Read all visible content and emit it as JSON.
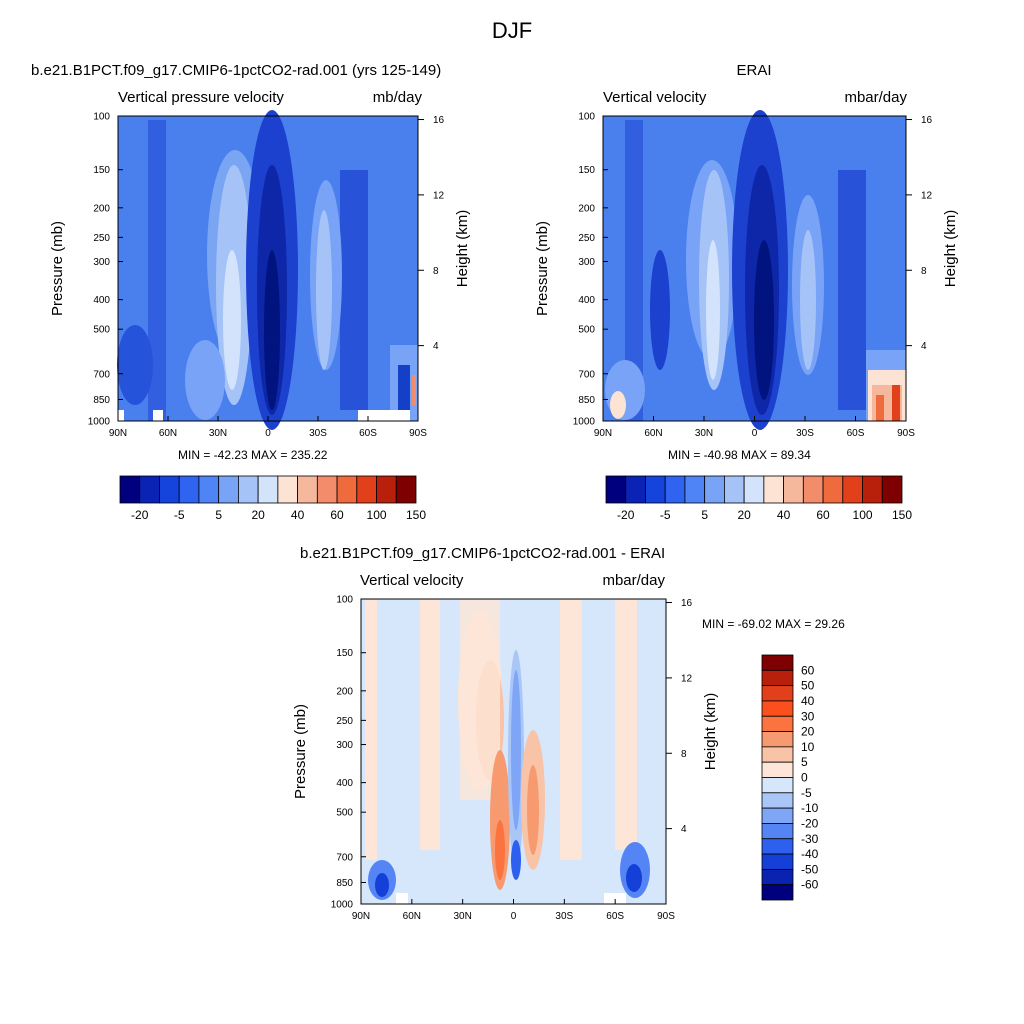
{
  "figure_title": "DJF",
  "chart_data": [
    {
      "type": "heatmap",
      "title": "b.e21.B1PCT.f09_g17.CMIP6-1pctCO2-rad.001 (yrs 125-149)",
      "subtitle_left": "Vertical pressure velocity",
      "subtitle_right": "mb/day",
      "ylabel_left": "Pressure (mb)",
      "ylabel_right": "Height (km)",
      "x_ticks": [
        "90N",
        "60N",
        "30N",
        "0",
        "30S",
        "60S",
        "90S"
      ],
      "x_range": [
        90,
        -90
      ],
      "y_ticks_pressure": [
        100,
        150,
        200,
        250,
        300,
        400,
        500,
        700,
        850,
        1000
      ],
      "y_range_pressure": [
        1000,
        100
      ],
      "y_ticks_height_km": [
        4,
        8,
        12,
        16
      ],
      "stats": "MIN = -42.23  MAX = 235.22",
      "min": -42.23,
      "max": 235.22,
      "colorbar_labels": [
        "-20",
        "-5",
        "5",
        "20",
        "40",
        "60",
        "100",
        "150"
      ],
      "colorbar_orientation": "horizontal"
    },
    {
      "type": "heatmap",
      "title": "ERAI",
      "subtitle_left": "Vertical velocity",
      "subtitle_right": "mbar/day",
      "ylabel_left": "Pressure (mb)",
      "ylabel_right": "Height (km)",
      "x_ticks": [
        "90N",
        "60N",
        "30N",
        "0",
        "30S",
        "60S",
        "90S"
      ],
      "x_range": [
        90,
        -90
      ],
      "y_ticks_pressure": [
        100,
        150,
        200,
        250,
        300,
        400,
        500,
        700,
        850,
        1000
      ],
      "y_range_pressure": [
        1000,
        100
      ],
      "y_ticks_height_km": [
        4,
        8,
        12,
        16
      ],
      "stats": "MIN = -40.98  MAX =  89.34",
      "min": -40.98,
      "max": 89.34,
      "colorbar_labels": [
        "-20",
        "-5",
        "5",
        "20",
        "40",
        "60",
        "100",
        "150"
      ],
      "colorbar_orientation": "horizontal"
    },
    {
      "type": "heatmap",
      "title": "b.e21.B1PCT.f09_g17.CMIP6-1pctCO2-rad.001 - ERAI",
      "subtitle_left": "Vertical velocity",
      "subtitle_right": "mbar/day",
      "ylabel_left": "Pressure (mb)",
      "ylabel_right": "Height (km)",
      "x_ticks": [
        "90N",
        "60N",
        "30N",
        "0",
        "30S",
        "60S",
        "90S"
      ],
      "x_range": [
        90,
        -90
      ],
      "y_ticks_pressure": [
        100,
        150,
        200,
        250,
        300,
        400,
        500,
        700,
        850,
        1000
      ],
      "y_range_pressure": [
        1000,
        100
      ],
      "y_ticks_height_km": [
        4,
        8,
        12,
        16
      ],
      "stats": "MIN = -69.02  MAX =  29.26",
      "min": -69.02,
      "max": 29.26,
      "colorbar_labels": [
        "60",
        "50",
        "40",
        "30",
        "20",
        "10",
        "5",
        "0",
        "-5",
        "-10",
        "-20",
        "-30",
        "-40",
        "-50",
        "-60"
      ],
      "colorbar_orientation": "vertical"
    }
  ],
  "colors": {
    "abs_colorbar": [
      "#00007f",
      "#0a23b4",
      "#1444dc",
      "#2e64f0",
      "#4f84f6",
      "#79a3f7",
      "#a6c3f8",
      "#d2e3fb",
      "#fde3d4",
      "#f6b89d",
      "#f28c6a",
      "#ef6a3c",
      "#e2401a",
      "#b8200c",
      "#7f0000"
    ],
    "diff_colorbar": [
      "#7f0000",
      "#b8200c",
      "#e2401a",
      "#fb4f1e",
      "#fb7440",
      "#f89a70",
      "#f8c3a6",
      "#fde6d7",
      "#d6e6fb",
      "#aac6f7",
      "#7fa5f6",
      "#5585f5",
      "#2e60ef",
      "#1440d8",
      "#0a22b0",
      "#00007f"
    ]
  }
}
